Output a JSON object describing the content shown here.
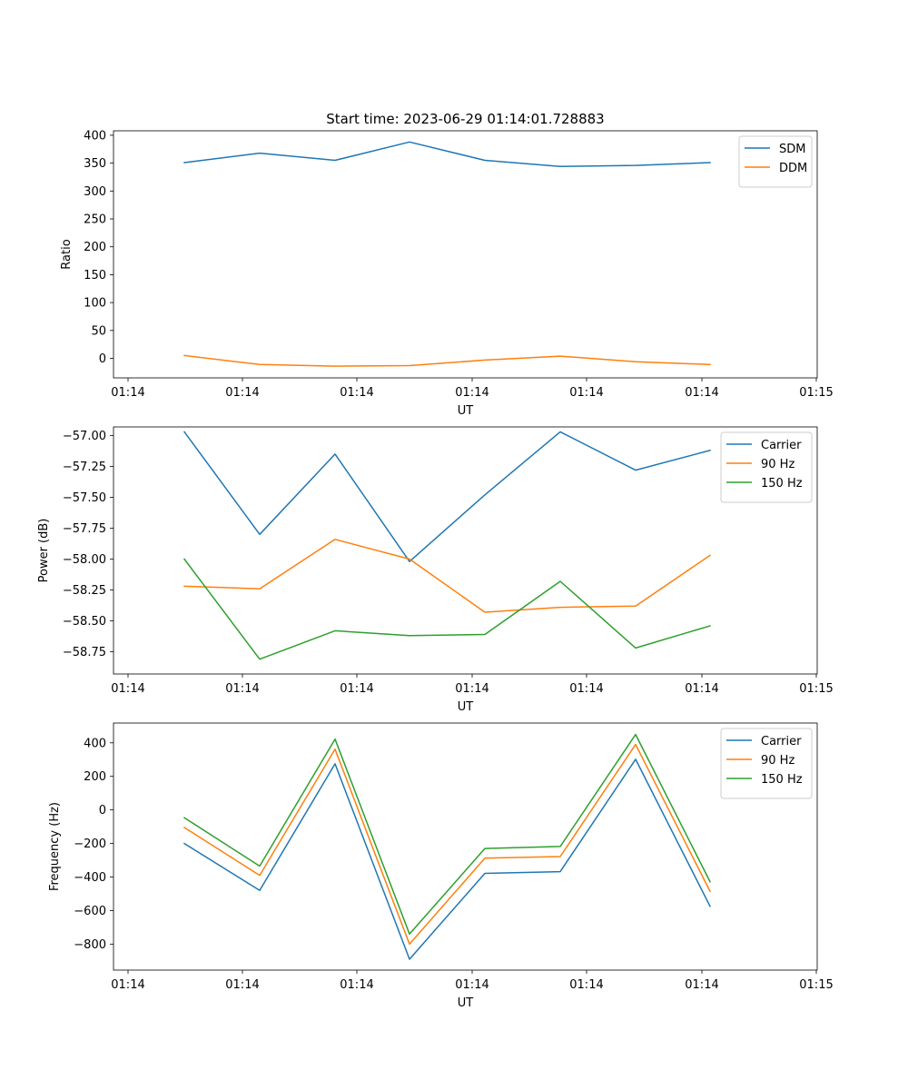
{
  "figure": {
    "title": "Start time: 2023-06-29 01:14:01.728883"
  },
  "chart_data": [
    {
      "type": "line",
      "xlabel": "UT",
      "ylabel": "Ratio",
      "xticks": [
        "01:14",
        "01:14",
        "01:14",
        "01:14",
        "01:14",
        "01:14",
        "01:15"
      ],
      "yticks": [
        "0",
        "50",
        "100",
        "150",
        "200",
        "250",
        "300",
        "350",
        "400"
      ],
      "ylim": [
        -35,
        408
      ],
      "legend_position": "upper right",
      "series": [
        {
          "name": "SDM",
          "color": "#1f77b4",
          "values": [
            351,
            368,
            355,
            388,
            355,
            344,
            346,
            351
          ]
        },
        {
          "name": "DDM",
          "color": "#ff7f0e",
          "values": [
            5,
            -11,
            -14,
            -13,
            -3,
            4,
            -6,
            -11
          ]
        }
      ]
    },
    {
      "type": "line",
      "xlabel": "UT",
      "ylabel": "Power (dB)",
      "xticks": [
        "01:14",
        "01:14",
        "01:14",
        "01:14",
        "01:14",
        "01:14",
        "01:15"
      ],
      "yticks": [
        "−58.75",
        "−58.50",
        "−58.25",
        "−58.00",
        "−57.75",
        "−57.50",
        "−57.25",
        "−57.00"
      ],
      "ylim": [
        -58.93,
        -56.93
      ],
      "legend_position": "upper right",
      "series": [
        {
          "name": "Carrier",
          "color": "#1f77b4",
          "values": [
            -56.97,
            -57.8,
            -57.15,
            -58.02,
            -57.48,
            -56.97,
            -57.28,
            -57.12
          ]
        },
        {
          "name": "90 Hz",
          "color": "#ff7f0e",
          "values": [
            -58.22,
            -58.24,
            -57.84,
            -58.0,
            -58.43,
            -58.39,
            -58.38,
            -57.97
          ]
        },
        {
          "name": "150 Hz",
          "color": "#2ca02c",
          "values": [
            -58.0,
            -58.81,
            -58.58,
            -58.62,
            -58.61,
            -58.18,
            -58.72,
            -58.54
          ]
        }
      ]
    },
    {
      "type": "line",
      "xlabel": "UT",
      "ylabel": "Frequency (Hz)",
      "xticks": [
        "01:14",
        "01:14",
        "01:14",
        "01:14",
        "01:14",
        "01:14",
        "01:15"
      ],
      "yticks": [
        "−800",
        "−600",
        "−400",
        "−200",
        "0",
        "200",
        "400"
      ],
      "ylim": [
        -955,
        518
      ],
      "legend_position": "upper right",
      "series": [
        {
          "name": "Carrier",
          "color": "#1f77b4",
          "values": [
            -200,
            -480,
            275,
            -890,
            -378,
            -368,
            302,
            -575
          ]
        },
        {
          "name": "90 Hz",
          "color": "#ff7f0e",
          "values": [
            -105,
            -390,
            362,
            -800,
            -288,
            -278,
            390,
            -485
          ]
        },
        {
          "name": "150 Hz",
          "color": "#2ca02c",
          "values": [
            -47,
            -335,
            422,
            -740,
            -230,
            -218,
            450,
            -428
          ]
        }
      ]
    }
  ]
}
